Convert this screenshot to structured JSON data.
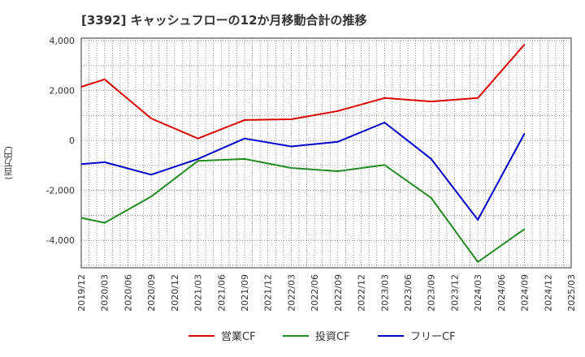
{
  "chart_data": {
    "type": "line",
    "title": "[3392]  キャッシュフローの12か月移動合計の推移",
    "ylabel": "(百万円)",
    "xlabel": "",
    "ylim": [
      -5100,
      4100
    ],
    "yticks": [
      4000,
      2000,
      0,
      -2000,
      -4000
    ],
    "ytick_labels": [
      "4,000",
      "2,000",
      "0",
      "-2,000",
      "-4,000"
    ],
    "grid": true,
    "legend_position": "bottom",
    "categories": [
      "2019/12",
      "2020/03",
      "2020/06",
      "2020/09",
      "2020/12",
      "2021/03",
      "2021/06",
      "2021/09",
      "2021/12",
      "2022/03",
      "2022/06",
      "2022/09",
      "2022/12",
      "2023/03",
      "2023/06",
      "2023/09",
      "2023/12",
      "2024/03",
      "2024/06",
      "2024/09",
      "2024/12",
      "2025/03"
    ],
    "series": [
      {
        "name": "営業CF",
        "color": "#dd0000",
        "values": [
          2150,
          2450,
          null,
          880,
          null,
          80,
          null,
          820,
          null,
          850,
          null,
          1180,
          null,
          1700,
          null,
          1560,
          null,
          1700,
          null,
          3850,
          null,
          null
        ]
      },
      {
        "name": "投資CF",
        "color": "#228b22",
        "values": [
          -3100,
          -3300,
          null,
          -2250,
          null,
          -820,
          null,
          -740,
          null,
          -1100,
          null,
          -1230,
          null,
          -980,
          null,
          -2300,
          null,
          -4870,
          null,
          -3550,
          null,
          null
        ]
      },
      {
        "name": "フリーCF",
        "color": "#0000cc",
        "values": [
          -950,
          -870,
          null,
          -1370,
          null,
          -740,
          null,
          80,
          null,
          -240,
          null,
          -50,
          null,
          720,
          null,
          -740,
          null,
          -3180,
          null,
          280,
          null,
          null
        ]
      }
    ]
  }
}
